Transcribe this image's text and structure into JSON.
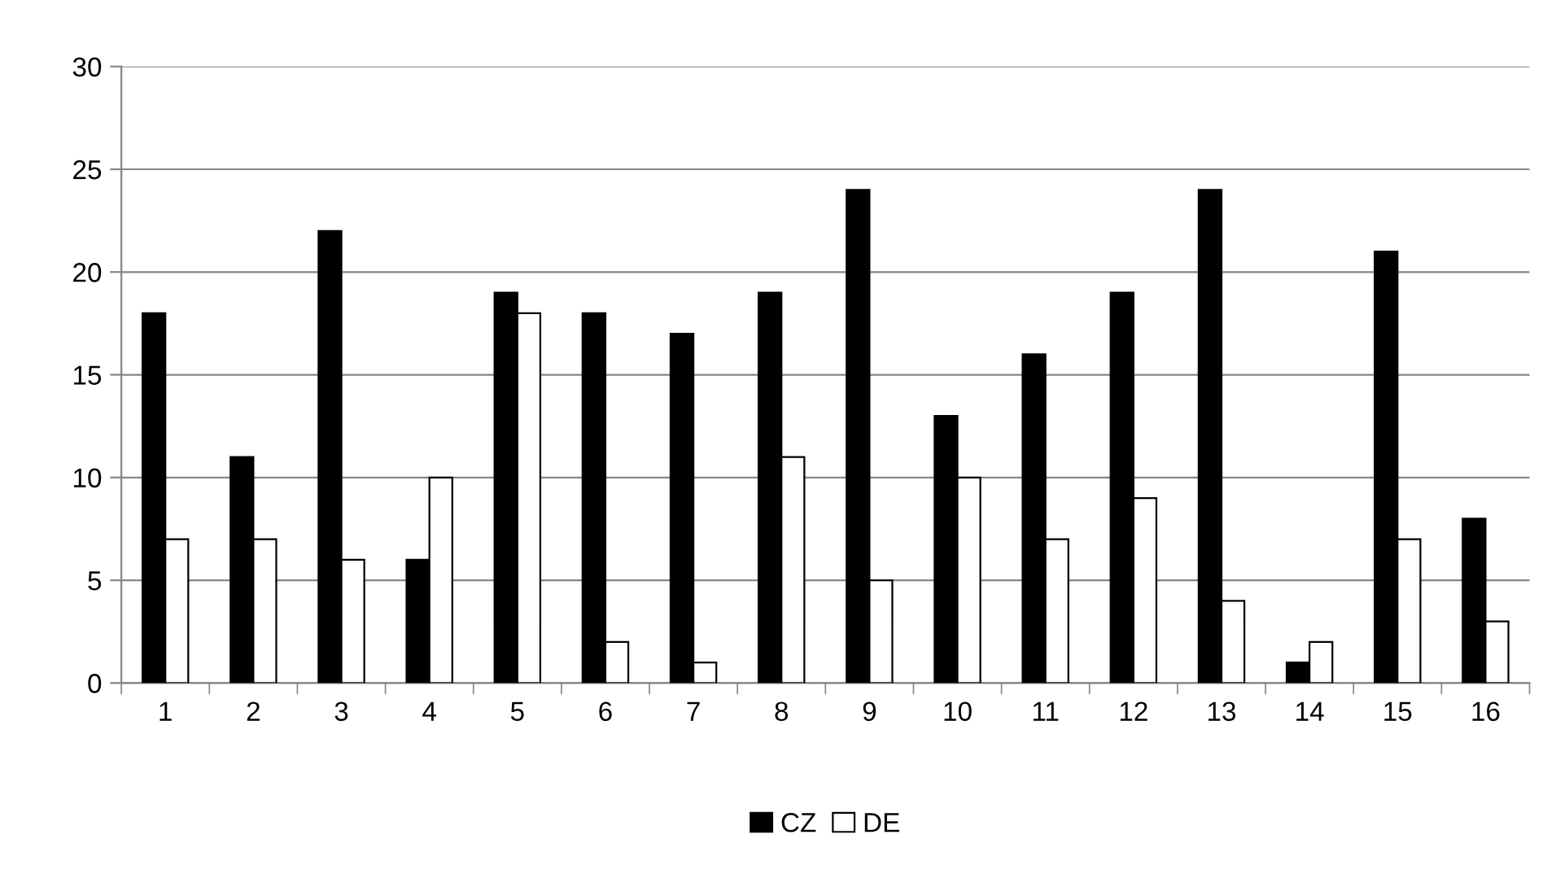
{
  "chart_data": {
    "type": "bar",
    "categories": [
      "1",
      "2",
      "3",
      "4",
      "5",
      "6",
      "7",
      "8",
      "9",
      "10",
      "11",
      "12",
      "13",
      "14",
      "15",
      "16"
    ],
    "series": [
      {
        "name": "CZ",
        "color": "#000000",
        "values": [
          18,
          11,
          22,
          6,
          19,
          18,
          17,
          19,
          24,
          13,
          16,
          19,
          24,
          1,
          21,
          8
        ]
      },
      {
        "name": "DE",
        "color": "#ffffff",
        "values": [
          7,
          7,
          6,
          10,
          18,
          2,
          1,
          11,
          5,
          10,
          7,
          9,
          4,
          2,
          7,
          3
        ]
      }
    ],
    "ylim": [
      0,
      30
    ],
    "yticks": [
      0,
      5,
      10,
      15,
      20,
      25,
      30
    ],
    "grid": "y",
    "legend": "bottom"
  }
}
